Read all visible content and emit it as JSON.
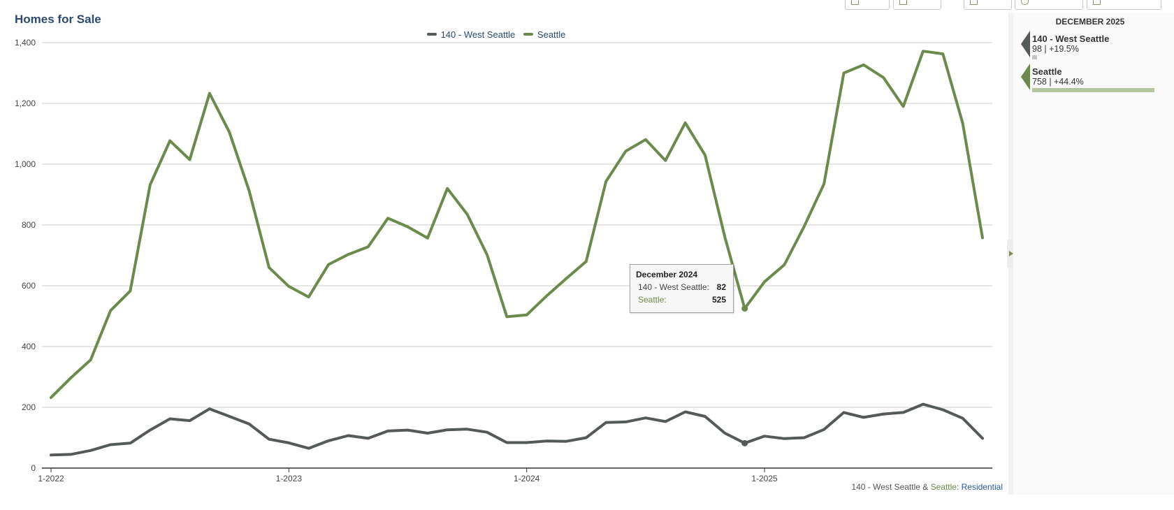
{
  "page": {
    "title": "Homes for Sale"
  },
  "colors": {
    "west_seattle": "#545b57",
    "seattle": "#6b8a4b",
    "grid": "#cccccc",
    "axis": "#333333",
    "title": "#2c4a6e",
    "seattle_bar": "#b5c7a0",
    "west_seattle_bar": "#c4c4c4"
  },
  "side_panel": {
    "header": "DECEMBER 2025",
    "items": [
      {
        "name": "140 - West Seattle",
        "value": "98 | +19.5%",
        "bar_fraction": 0.04
      },
      {
        "name": "Seattle",
        "value": "758 | +44.4%",
        "bar_fraction": 1.0
      }
    ]
  },
  "tooltip": {
    "title": "December 2024",
    "rows": [
      {
        "label": "140 - West Seattle:",
        "value": "82"
      },
      {
        "label": "Seattle:",
        "value": "525"
      }
    ]
  },
  "footnote": {
    "part1": "140 - West Seattle",
    "amp": " & ",
    "part2": "Seattle",
    "part3": ": ",
    "part4": "Residential"
  },
  "chart_data": {
    "type": "line",
    "title": "Homes for Sale",
    "xlabel": "",
    "ylabel": "",
    "ylim": [
      0,
      1400
    ],
    "y_ticks": [
      0,
      200,
      400,
      600,
      800,
      1000,
      1200,
      1400
    ],
    "y_tick_labels": [
      "0",
      "200",
      "400",
      "600",
      "800",
      "1,000",
      "1,200",
      "1,400"
    ],
    "x_tick_labels": [
      "1-2022",
      "1-2023",
      "1-2024",
      "1-2025"
    ],
    "x_tick_months": [
      "2022-01",
      "2023-01",
      "2024-01",
      "2025-01"
    ],
    "grid": true,
    "legend_position": "top-center",
    "highlighted_month": "2024-12",
    "x": [
      "2022-01",
      "2022-02",
      "2022-03",
      "2022-04",
      "2022-05",
      "2022-06",
      "2022-07",
      "2022-08",
      "2022-09",
      "2022-10",
      "2022-11",
      "2022-12",
      "2023-01",
      "2023-02",
      "2023-03",
      "2023-04",
      "2023-05",
      "2023-06",
      "2023-07",
      "2023-08",
      "2023-09",
      "2023-10",
      "2023-11",
      "2023-12",
      "2024-01",
      "2024-02",
      "2024-03",
      "2024-04",
      "2024-05",
      "2024-06",
      "2024-07",
      "2024-08",
      "2024-09",
      "2024-10",
      "2024-11",
      "2024-12",
      "2025-01",
      "2025-02",
      "2025-03",
      "2025-04",
      "2025-05",
      "2025-06",
      "2025-07",
      "2025-08",
      "2025-09",
      "2025-10",
      "2025-11",
      "2025-12"
    ],
    "series": [
      {
        "name": "140 - West Seattle",
        "color": "#545b57",
        "values": [
          43,
          45,
          58,
          77,
          82,
          125,
          162,
          156,
          195,
          170,
          145,
          95,
          83,
          65,
          90,
          107,
          98,
          122,
          125,
          115,
          126,
          128,
          118,
          84,
          84,
          89,
          88,
          100,
          150,
          152,
          165,
          153,
          185,
          170,
          115,
          82,
          105,
          97,
          100,
          127,
          183,
          167,
          178,
          183,
          210,
          192,
          164,
          98
        ]
      },
      {
        "name": "Seattle",
        "color": "#6b8a4b",
        "values": [
          232,
          297,
          356,
          518,
          583,
          932,
          1077,
          1015,
          1233,
          1105,
          912,
          660,
          598,
          563,
          670,
          703,
          728,
          822,
          794,
          757,
          920,
          835,
          702,
          498,
          504,
          566,
          624,
          680,
          943,
          1043,
          1081,
          1012,
          1136,
          1030,
          760,
          525,
          613,
          669,
          795,
          935,
          1300,
          1327,
          1285,
          1190,
          1372,
          1363,
          1135,
          758
        ]
      }
    ]
  }
}
